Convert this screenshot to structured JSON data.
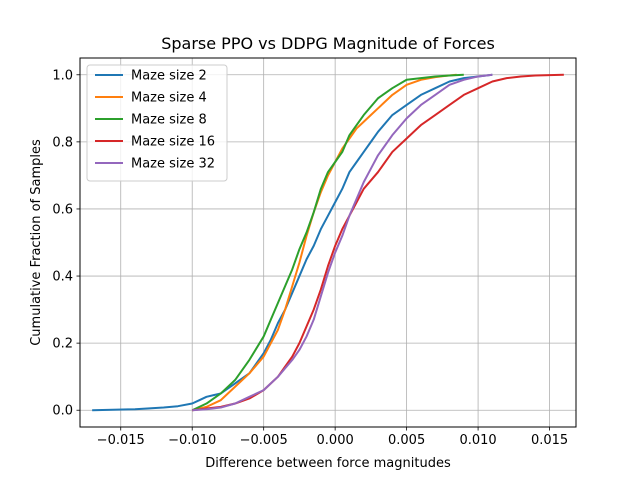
{
  "chart_data": {
    "type": "line",
    "title": "Sparse PPO vs DDPG Magnitude of Forces",
    "xlabel": "Difference between force magnitudes",
    "ylabel": "Cumulative Fraction of Samples",
    "xlim": [
      -0.01785,
      0.01685
    ],
    "ylim": [
      -0.05,
      1.05
    ],
    "x_ticks": [
      -0.015,
      -0.01,
      -0.005,
      0.0,
      0.005,
      0.01,
      0.015
    ],
    "x_tick_labels": [
      "−0.015",
      "−0.010",
      "−0.005",
      "0.000",
      "0.005",
      "0.010",
      "0.015"
    ],
    "y_ticks": [
      0.0,
      0.2,
      0.4,
      0.6,
      0.8,
      1.0
    ],
    "y_tick_labels": [
      "0.0",
      "0.2",
      "0.4",
      "0.6",
      "0.8",
      "1.0"
    ],
    "grid": true,
    "legend_position": "top-left",
    "series": [
      {
        "name": "Maze size 2",
        "color": "#1f77b4",
        "x": [
          -0.017,
          -0.014,
          -0.012,
          -0.011,
          -0.01,
          -0.0095,
          -0.009,
          -0.0085,
          -0.008,
          -0.007,
          -0.006,
          -0.005,
          -0.0045,
          -0.004,
          -0.0035,
          -0.003,
          -0.0025,
          -0.002,
          -0.0015,
          -0.001,
          -0.0005,
          0.0,
          0.0005,
          0.001,
          0.0015,
          0.002,
          0.0025,
          0.003,
          0.004,
          0.005,
          0.006,
          0.007,
          0.008,
          0.009,
          0.01,
          0.011
        ],
        "y": [
          0.0,
          0.003,
          0.008,
          0.012,
          0.02,
          0.03,
          0.04,
          0.045,
          0.05,
          0.08,
          0.11,
          0.17,
          0.21,
          0.26,
          0.3,
          0.35,
          0.4,
          0.45,
          0.49,
          0.54,
          0.58,
          0.62,
          0.66,
          0.71,
          0.74,
          0.77,
          0.8,
          0.83,
          0.88,
          0.91,
          0.94,
          0.96,
          0.98,
          0.99,
          0.995,
          1.0
        ]
      },
      {
        "name": "Maze size 4",
        "color": "#ff7f0e",
        "x": [
          -0.01,
          -0.009,
          -0.008,
          -0.007,
          -0.006,
          -0.005,
          -0.004,
          -0.0035,
          -0.003,
          -0.0025,
          -0.002,
          -0.0015,
          -0.001,
          -0.0005,
          0.0,
          0.0005,
          0.001,
          0.0015,
          0.002,
          0.0025,
          0.003,
          0.004,
          0.005,
          0.006,
          0.007,
          0.008,
          0.0085
        ],
        "y": [
          0.0,
          0.01,
          0.03,
          0.07,
          0.11,
          0.16,
          0.24,
          0.3,
          0.37,
          0.44,
          0.52,
          0.59,
          0.65,
          0.7,
          0.74,
          0.78,
          0.81,
          0.84,
          0.86,
          0.88,
          0.9,
          0.94,
          0.97,
          0.985,
          0.993,
          0.998,
          1.0
        ]
      },
      {
        "name": "Maze size 8",
        "color": "#2ca02c",
        "x": [
          -0.01,
          -0.009,
          -0.008,
          -0.007,
          -0.006,
          -0.005,
          -0.0045,
          -0.004,
          -0.0035,
          -0.003,
          -0.0025,
          -0.002,
          -0.0015,
          -0.001,
          -0.0005,
          0.0,
          0.0005,
          0.001,
          0.002,
          0.003,
          0.004,
          0.005,
          0.006,
          0.007,
          0.008,
          0.009
        ],
        "y": [
          0.0,
          0.02,
          0.05,
          0.09,
          0.15,
          0.22,
          0.27,
          0.32,
          0.37,
          0.42,
          0.48,
          0.53,
          0.59,
          0.66,
          0.71,
          0.74,
          0.77,
          0.82,
          0.88,
          0.93,
          0.96,
          0.985,
          0.99,
          0.995,
          0.998,
          1.0
        ]
      },
      {
        "name": "Maze size 16",
        "color": "#d62728",
        "x": [
          -0.01,
          -0.009,
          -0.008,
          -0.007,
          -0.006,
          -0.005,
          -0.004,
          -0.0035,
          -0.003,
          -0.0025,
          -0.002,
          -0.0015,
          -0.001,
          -0.0005,
          0.0,
          0.0005,
          0.001,
          0.0015,
          0.002,
          0.003,
          0.004,
          0.005,
          0.006,
          0.007,
          0.008,
          0.009,
          0.01,
          0.011,
          0.012,
          0.013,
          0.014,
          0.016
        ],
        "y": [
          0.0,
          0.005,
          0.01,
          0.02,
          0.035,
          0.06,
          0.1,
          0.13,
          0.16,
          0.2,
          0.25,
          0.3,
          0.36,
          0.43,
          0.49,
          0.54,
          0.58,
          0.62,
          0.66,
          0.71,
          0.77,
          0.81,
          0.85,
          0.88,
          0.91,
          0.94,
          0.96,
          0.98,
          0.99,
          0.995,
          0.998,
          1.0
        ]
      },
      {
        "name": "Maze size 32",
        "color": "#9467bd",
        "x": [
          -0.01,
          -0.009,
          -0.008,
          -0.007,
          -0.006,
          -0.005,
          -0.004,
          -0.003,
          -0.0025,
          -0.002,
          -0.0015,
          -0.001,
          -0.0005,
          0.0,
          0.0005,
          0.001,
          0.0015,
          0.002,
          0.0025,
          0.003,
          0.004,
          0.005,
          0.006,
          0.007,
          0.008,
          0.009,
          0.01,
          0.011
        ],
        "y": [
          0.0,
          0.003,
          0.008,
          0.02,
          0.04,
          0.06,
          0.1,
          0.15,
          0.18,
          0.22,
          0.27,
          0.34,
          0.41,
          0.47,
          0.52,
          0.58,
          0.63,
          0.68,
          0.72,
          0.76,
          0.82,
          0.87,
          0.91,
          0.94,
          0.97,
          0.985,
          0.995,
          1.0
        ]
      }
    ]
  }
}
